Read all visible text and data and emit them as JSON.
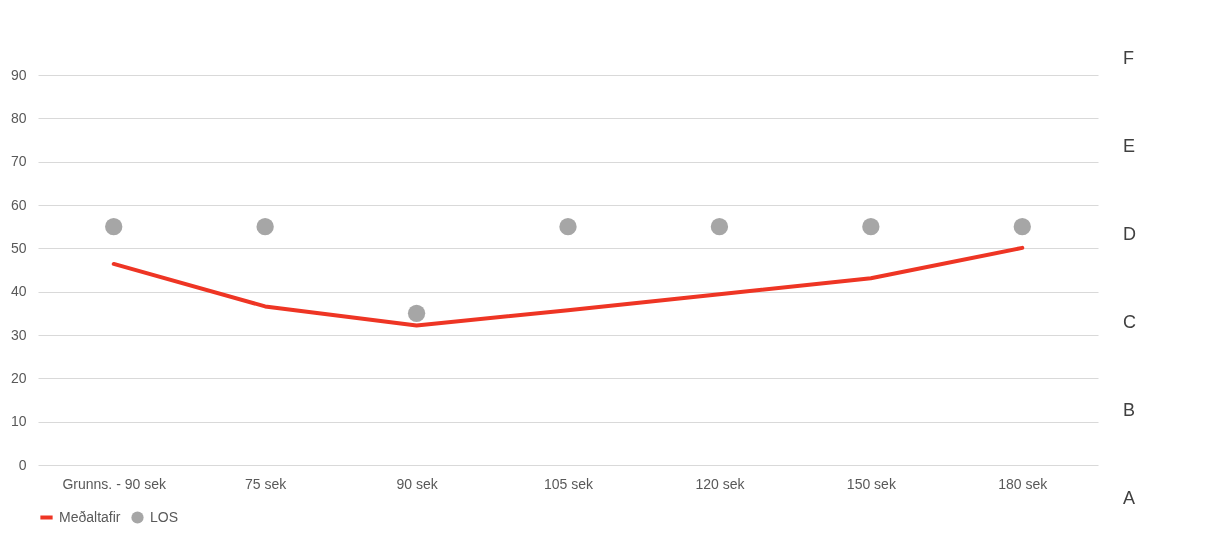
{
  "chart_data": {
    "type": "line",
    "categories": [
      "Grunns. - 90 sek",
      "75 sek",
      "90 sek",
      "105 sek",
      "120 sek",
      "150 sek",
      "180 sek"
    ],
    "series": [
      {
        "name": "Meðaltafir",
        "color": "#ee3524",
        "values": [
          46.4,
          36.6,
          32.2,
          35.7,
          39.4,
          43.1,
          50.1
        ]
      },
      {
        "name": "LOS",
        "type": "scatter",
        "marker": "circle",
        "color": "#a6a6a6",
        "values": [
          55,
          55,
          35,
          55,
          55,
          55,
          55
        ]
      }
    ],
    "ylim": [
      0,
      90
    ],
    "yticks": [
      0,
      10,
      20,
      30,
      40,
      50,
      60,
      70,
      80,
      90
    ],
    "annotations": [
      "A",
      "B",
      "C",
      "D",
      "E",
      "F"
    ],
    "grid": "y",
    "legend": "bottom"
  }
}
